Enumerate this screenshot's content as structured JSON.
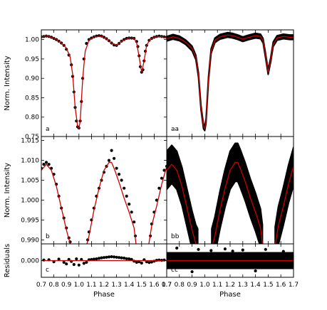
{
  "chart_data": [
    {
      "type": "line",
      "panel_label": "a",
      "ylabel": "Norm. Intensity",
      "xlim": [
        0.7,
        1.7
      ],
      "ylim": [
        0.75,
        1.025
      ],
      "yticks": [
        "0.75",
        "0.80",
        "0.85",
        "0.90",
        "0.95",
        "1.00"
      ],
      "series": [
        {
          "kind": "points",
          "color": "#000000",
          "x": [
            0.7,
            0.72,
            0.74,
            0.76,
            0.78,
            0.8,
            0.82,
            0.84,
            0.86,
            0.88,
            0.9,
            0.92,
            0.94,
            0.95,
            0.96,
            0.97,
            0.98,
            0.99,
            1.0,
            1.01,
            1.02,
            1.03,
            1.04,
            1.06,
            1.08,
            1.1,
            1.12,
            1.14,
            1.16,
            1.18,
            1.2,
            1.22,
            1.24,
            1.26,
            1.28,
            1.3,
            1.32,
            1.34,
            1.36,
            1.38,
            1.4,
            1.42,
            1.44,
            1.46,
            1.47,
            1.48,
            1.49,
            1.5,
            1.51,
            1.52,
            1.53,
            1.54,
            1.56,
            1.58,
            1.6,
            1.62,
            1.64,
            1.66,
            1.68,
            1.7
          ],
          "y": [
            1.007,
            1.008,
            1.009,
            1.008,
            1.006,
            1.003,
            1.0,
            0.996,
            0.991,
            0.985,
            0.975,
            0.96,
            0.935,
            0.905,
            0.865,
            0.825,
            0.79,
            0.775,
            0.772,
            0.79,
            0.84,
            0.9,
            0.95,
            0.99,
            1.0,
            1.004,
            1.007,
            1.009,
            1.01,
            1.009,
            1.006,
            1.002,
            0.997,
            0.991,
            0.986,
            0.985,
            0.99,
            0.996,
            1.0,
            1.003,
            1.004,
            1.004,
            1.003,
            0.995,
            0.982,
            0.958,
            0.93,
            0.916,
            0.922,
            0.945,
            0.97,
            0.985,
            0.998,
            1.003,
            1.006,
            1.008,
            1.009,
            1.008,
            1.007,
            1.006
          ]
        },
        {
          "kind": "model",
          "color": "#cc0000",
          "x": [
            0.7,
            0.75,
            0.8,
            0.85,
            0.9,
            0.93,
            0.95,
            0.97,
            0.99,
            1.0,
            1.01,
            1.03,
            1.05,
            1.08,
            1.12,
            1.18,
            1.22,
            1.26,
            1.3,
            1.34,
            1.4,
            1.44,
            1.46,
            1.48,
            1.5,
            1.52,
            1.54,
            1.57,
            1.62,
            1.67,
            1.7
          ],
          "y": [
            1.007,
            1.009,
            1.004,
            0.994,
            0.978,
            0.955,
            0.91,
            0.825,
            0.776,
            0.771,
            0.79,
            0.9,
            0.97,
            0.998,
            1.007,
            1.009,
            1.002,
            0.991,
            0.985,
            0.996,
            1.004,
            1.003,
            0.992,
            0.955,
            0.916,
            0.945,
            0.985,
            1.002,
            1.008,
            1.007,
            1.006
          ]
        }
      ]
    },
    {
      "type": "line",
      "panel_label": "aa",
      "xlim": [
        0.7,
        1.7
      ],
      "ylim": [
        0.75,
        1.025
      ],
      "series": [
        {
          "kind": "band",
          "color": "#000000",
          "x": [
            0.7,
            0.75,
            0.8,
            0.85,
            0.9,
            0.93,
            0.95,
            0.97,
            0.99,
            1.0,
            1.01,
            1.03,
            1.05,
            1.08,
            1.12,
            1.18,
            1.22,
            1.26,
            1.3,
            1.34,
            1.4,
            1.44,
            1.46,
            1.48,
            1.5,
            1.52,
            1.54,
            1.57,
            1.62,
            1.67,
            1.7
          ],
          "y": [
            1.002,
            1.007,
            1.003,
            0.993,
            0.977,
            0.954,
            0.91,
            0.825,
            0.776,
            0.771,
            0.79,
            0.9,
            0.97,
            0.998,
            1.007,
            1.012,
            1.01,
            1.006,
            1.001,
            1.005,
            1.01,
            1.008,
            0.997,
            0.958,
            0.916,
            0.948,
            0.988,
            1.004,
            1.008,
            1.006,
            1.006
          ],
          "halfwidth": 0.006
        },
        {
          "kind": "model",
          "color": "#cc0000",
          "x": [
            0.7,
            0.75,
            0.8,
            0.85,
            0.9,
            0.93,
            0.95,
            0.97,
            0.99,
            1.0,
            1.01,
            1.03,
            1.05,
            1.08,
            1.12,
            1.18,
            1.22,
            1.26,
            1.3,
            1.34,
            1.4,
            1.44,
            1.46,
            1.48,
            1.5,
            1.52,
            1.54,
            1.57,
            1.62,
            1.67,
            1.7
          ],
          "y": [
            1.002,
            1.007,
            1.003,
            0.993,
            0.977,
            0.954,
            0.91,
            0.825,
            0.776,
            0.771,
            0.79,
            0.9,
            0.97,
            0.998,
            1.007,
            1.012,
            1.01,
            1.006,
            1.001,
            1.005,
            1.01,
            1.008,
            0.997,
            0.958,
            0.916,
            0.948,
            0.988,
            1.004,
            1.008,
            1.006,
            1.006
          ]
        }
      ]
    },
    {
      "type": "line",
      "panel_label": "b",
      "ylabel": "Norm. Intensity",
      "xlim": [
        0.7,
        1.7
      ],
      "ylim": [
        0.989,
        1.016
      ],
      "yticks": [
        "0.990",
        "0.995",
        "1.000",
        "1.005",
        "1.010",
        "1.015"
      ],
      "series": [
        {
          "kind": "points",
          "color": "#000000",
          "x": [
            0.7,
            0.72,
            0.74,
            0.76,
            0.78,
            0.8,
            0.82,
            0.84,
            0.86,
            0.88,
            0.9,
            0.92,
            0.93,
            0.94,
            1.06,
            1.07,
            1.08,
            1.1,
            1.12,
            1.14,
            1.16,
            1.18,
            1.2,
            1.22,
            1.24,
            1.26,
            1.28,
            1.3,
            1.32,
            1.34,
            1.36,
            1.38,
            1.4,
            1.42,
            1.44,
            1.45,
            1.56,
            1.57,
            1.58,
            1.6,
            1.62,
            1.64,
            1.66,
            1.68,
            1.7
          ],
          "y": [
            1.008,
            1.009,
            1.0095,
            1.009,
            1.008,
            1.0065,
            1.004,
            1.001,
            0.998,
            0.9955,
            0.993,
            0.9905,
            0.9895,
            0.9885,
            0.9885,
            0.99,
            0.992,
            0.995,
            0.998,
            1.001,
            1.003,
            1.005,
            1.007,
            1.0085,
            1.01,
            1.0125,
            1.0105,
            1.008,
            1.0065,
            1.005,
            1.003,
            1.001,
            0.999,
            0.997,
            0.9945,
            0.991,
            0.9885,
            0.991,
            0.994,
            0.997,
            1.0,
            1.003,
            1.0055,
            1.0075,
            1.0085
          ]
        },
        {
          "kind": "model",
          "color": "#cc0000",
          "x": [
            0.7,
            0.74,
            0.78,
            0.82,
            0.86,
            0.9,
            0.93,
            0.945,
            null,
            1.055,
            1.08,
            1.12,
            1.16,
            1.2,
            1.24,
            1.26,
            1.28,
            1.32,
            1.36,
            1.4,
            1.44,
            1.455,
            null,
            1.555,
            1.58,
            1.62,
            1.66,
            1.7
          ],
          "y": [
            1.0075,
            1.009,
            1.0075,
            1.0035,
            0.998,
            0.9925,
            0.989,
            0.988,
            null,
            0.988,
            0.991,
            0.9975,
            1.003,
            1.0075,
            1.0095,
            1.0095,
            1.008,
            1.0045,
            1.0005,
            0.997,
            0.993,
            0.989,
            null,
            0.9885,
            0.9935,
            0.9985,
            1.004,
            1.0085
          ]
        }
      ]
    },
    {
      "type": "line",
      "panel_label": "bb",
      "xlim": [
        0.7,
        1.7
      ],
      "ylim": [
        0.989,
        1.016
      ],
      "series": [
        {
          "kind": "band",
          "color": "#000000",
          "x": [
            0.7,
            0.74,
            0.78,
            0.82,
            0.86,
            0.9,
            0.93,
            0.945,
            null,
            1.055,
            1.08,
            1.12,
            1.16,
            1.2,
            1.24,
            1.26,
            1.28,
            1.32,
            1.36,
            1.4,
            1.44,
            1.455,
            null,
            1.555,
            1.58,
            1.62,
            1.66,
            1.7
          ],
          "y": [
            1.0075,
            1.009,
            1.0075,
            1.0035,
            0.998,
            0.9925,
            0.989,
            0.988,
            null,
            0.988,
            0.991,
            0.9975,
            1.003,
            1.0075,
            1.0095,
            1.0095,
            1.008,
            1.0045,
            1.0005,
            0.997,
            0.993,
            0.989,
            null,
            0.9885,
            0.9935,
            0.9985,
            1.004,
            1.0085
          ],
          "halfwidth": 0.0048
        },
        {
          "kind": "model",
          "color": "#cc0000",
          "x": [
            0.7,
            0.74,
            0.78,
            0.82,
            0.86,
            0.9,
            0.93,
            0.945,
            null,
            1.055,
            1.08,
            1.12,
            1.16,
            1.2,
            1.24,
            1.26,
            1.28,
            1.32,
            1.36,
            1.4,
            1.44,
            1.455,
            null,
            1.555,
            1.58,
            1.62,
            1.66,
            1.7
          ],
          "y": [
            1.0075,
            1.009,
            1.0075,
            1.0035,
            0.998,
            0.9925,
            0.989,
            0.988,
            null,
            0.988,
            0.991,
            0.9975,
            1.003,
            1.0075,
            1.0095,
            1.0095,
            1.008,
            1.0045,
            1.0005,
            0.997,
            0.993,
            0.989,
            null,
            0.9885,
            0.9935,
            0.9985,
            1.004,
            1.0085
          ]
        }
      ]
    },
    {
      "type": "line",
      "panel_label": "c",
      "ylabel": "Residuals",
      "xlabel": "Phase",
      "xlim": [
        0.7,
        1.7
      ],
      "ylim": [
        -0.006,
        0.006
      ],
      "yticks": [
        "0.000"
      ],
      "xticks": [
        "0.7",
        "0.8",
        "0.9",
        "1.0",
        "1.1",
        "1.2",
        "1.3",
        "1.4",
        "1.5",
        "1.6",
        "1.7"
      ],
      "series": [
        {
          "kind": "points",
          "color": "#000000",
          "x": [
            0.72,
            0.76,
            0.8,
            0.84,
            0.88,
            0.9,
            0.92,
            0.94,
            0.96,
            0.98,
            1.0,
            1.02,
            1.04,
            1.06,
            1.08,
            1.1,
            1.12,
            1.14,
            1.16,
            1.18,
            1.2,
            1.22,
            1.24,
            1.26,
            1.28,
            1.3,
            1.32,
            1.34,
            1.36,
            1.38,
            1.4,
            1.42,
            1.44,
            1.46,
            1.48,
            1.5,
            1.52,
            1.54,
            1.56,
            1.58,
            1.6,
            1.62,
            1.64,
            1.66,
            1.68
          ],
          "y": [
            0.0002,
            0.0003,
            -0.0004,
            0.0005,
            -0.0006,
            -0.0012,
            0.0004,
            -0.0003,
            -0.0014,
            0.0006,
            -0.0016,
            0.0004,
            -0.001,
            -0.0006,
            0.0003,
            0.0004,
            0.0005,
            0.0006,
            0.0008,
            0.001,
            0.0011,
            0.0012,
            0.0013,
            0.0014,
            0.0013,
            0.0012,
            0.0011,
            0.001,
            0.0009,
            0.0007,
            0.0006,
            0.0004,
            -0.0002,
            -0.0006,
            -0.0004,
            -0.0009,
            0.0003,
            -0.0004,
            -0.0007,
            -0.0005,
            -0.0002,
            0.0001,
            0.0002,
            0.0001,
            0.0002
          ]
        },
        {
          "kind": "model",
          "color": "#cc0000",
          "x": [
            0.7,
            1.7
          ],
          "y": [
            0,
            0
          ]
        }
      ]
    },
    {
      "type": "line",
      "panel_label": "cc",
      "xlabel": "Phase",
      "xlim": [
        0.7,
        1.7
      ],
      "ylim": [
        -0.006,
        0.006
      ],
      "xticks": [
        "0.7",
        "0.8",
        "0.9",
        "1.0",
        "1.1",
        "1.2",
        "1.3",
        "1.4",
        "1.5",
        "1.6",
        "1.7"
      ],
      "series": [
        {
          "kind": "band",
          "color": "#000000",
          "x": [
            0.7,
            1.7
          ],
          "y": [
            0,
            0
          ],
          "halfwidth": 0.0028
        },
        {
          "kind": "points",
          "color": "#000000",
          "x": [
            0.78,
            0.95,
            1.05,
            1.16,
            1.22,
            1.3,
            1.48,
            1.62,
            0.9,
            1.4
          ],
          "y": [
            0.0045,
            0.004,
            0.0036,
            0.0042,
            0.0034,
            0.0038,
            0.004,
            0.0033,
            -0.004,
            -0.0037
          ]
        },
        {
          "kind": "model",
          "color": "#cc0000",
          "x": [
            0.7,
            1.7
          ],
          "y": [
            0,
            0
          ]
        }
      ]
    }
  ]
}
